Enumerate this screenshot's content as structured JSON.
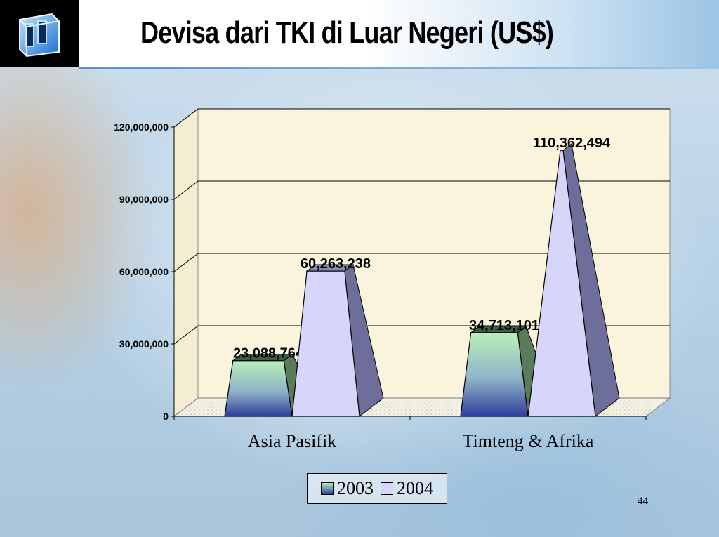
{
  "page_title": "Devisa dari TKI di Luar Negeri (US$)",
  "page_number": "44",
  "colors": {
    "series_2003": "#b9f0b9",
    "series_2004": "#d6d6fb",
    "floor": "#f3f0e4",
    "plot_bg": "#fbf4dc"
  },
  "icons": {
    "logo": "window-cube-icon"
  },
  "chart_data": {
    "type": "bar",
    "title": "",
    "xlabel": "",
    "ylabel": "",
    "categories": [
      "Asia Pasifik",
      "Timteng & Afrika"
    ],
    "series": [
      {
        "name": "2003",
        "values": [
          23088764,
          34713101
        ],
        "labels": [
          "23,088,764",
          "34,713,101"
        ]
      },
      {
        "name": "2004",
        "values": [
          60263238,
          110362494
        ],
        "labels": [
          "60,263,238",
          "110,362,494"
        ]
      }
    ],
    "ylim": [
      0,
      120000000
    ],
    "yticks": [
      0,
      30000000,
      60000000,
      90000000,
      120000000
    ],
    "ytick_labels": [
      "0",
      "30,000,000",
      "60,000,000",
      "90,000,000",
      "120,000,000"
    ],
    "grid": true,
    "legend": "bottom"
  }
}
